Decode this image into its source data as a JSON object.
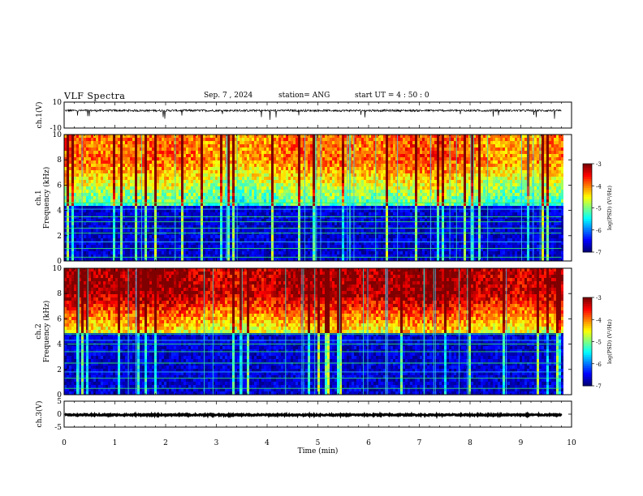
{
  "header": {
    "title": "VLF Spectra",
    "date": "Sep. 7  , 2024",
    "station": "station= ANG",
    "start": "start  UT  =   4  : 50 : 0"
  },
  "chart_data": [
    {
      "type": "line",
      "panel": "ch1-waveform",
      "ylabel": "ch.1(V)",
      "ylim": [
        -10,
        10
      ],
      "yticks": [
        "10",
        "-10"
      ],
      "xlim": [
        0,
        10
      ],
      "baseline_v": 3.5
    },
    {
      "type": "heatmap",
      "panel": "ch1-spectrogram",
      "ylabel": "ch.1\nFrequency (kHz)",
      "ylabel_lines": [
        "ch.1",
        "Frequency (kHz)"
      ],
      "ylim": [
        0,
        10
      ],
      "yticks": [
        "0",
        "2",
        "4",
        "6",
        "8",
        "10"
      ],
      "xlim": [
        0,
        10
      ],
      "data_end_min": 9.8,
      "colorbar": {
        "label": "log(PSD) (V²/Hz)",
        "ticks": [
          "-3",
          "-4",
          "-5",
          "-6",
          "-7"
        ],
        "range": [
          -7,
          -3
        ]
      },
      "intensity_profile": "upper band 4.6–10 kHz moderate (green/yellow with red streaks); below 4.6 kHz mostly dark with horizontal lines"
    },
    {
      "type": "heatmap",
      "panel": "ch2-spectrogram",
      "ylabel": "ch.2\nFrequency (kHz)",
      "ylabel_lines": [
        "ch.2",
        "Frequency (kHz)"
      ],
      "ylim": [
        0,
        10
      ],
      "yticks": [
        "0",
        "2",
        "4",
        "6",
        "8",
        "10"
      ],
      "xlim": [
        0,
        10
      ],
      "data_end_min": 9.8,
      "colorbar": {
        "label": "log(PSD) (V²/Hz)",
        "ticks": [
          "-3",
          "-4",
          "-5",
          "-6",
          "-7"
        ],
        "range": [
          -7,
          -3
        ]
      },
      "intensity_profile": "upper band 5–10 kHz strong (yellow/orange/red); below 5 kHz dark blue with horizontal lines"
    },
    {
      "type": "line",
      "panel": "ch3-waveform",
      "ylabel": "ch.3(V)",
      "ylim": [
        -5,
        5
      ],
      "yticks": [
        "5",
        "0",
        "-5"
      ],
      "xlim": [
        0,
        10
      ],
      "baseline_v": -0.3
    }
  ],
  "xaxis": {
    "label": "Time (min)",
    "ticks": [
      "0",
      "1",
      "2",
      "3",
      "4",
      "5",
      "6",
      "7",
      "8",
      "9",
      "10"
    ]
  },
  "colors": {
    "jet": [
      "#00007f",
      "#0000ff",
      "#007fff",
      "#00ffff",
      "#7fff7f",
      "#ffff00",
      "#ff7f00",
      "#ff0000",
      "#7f0000"
    ]
  }
}
